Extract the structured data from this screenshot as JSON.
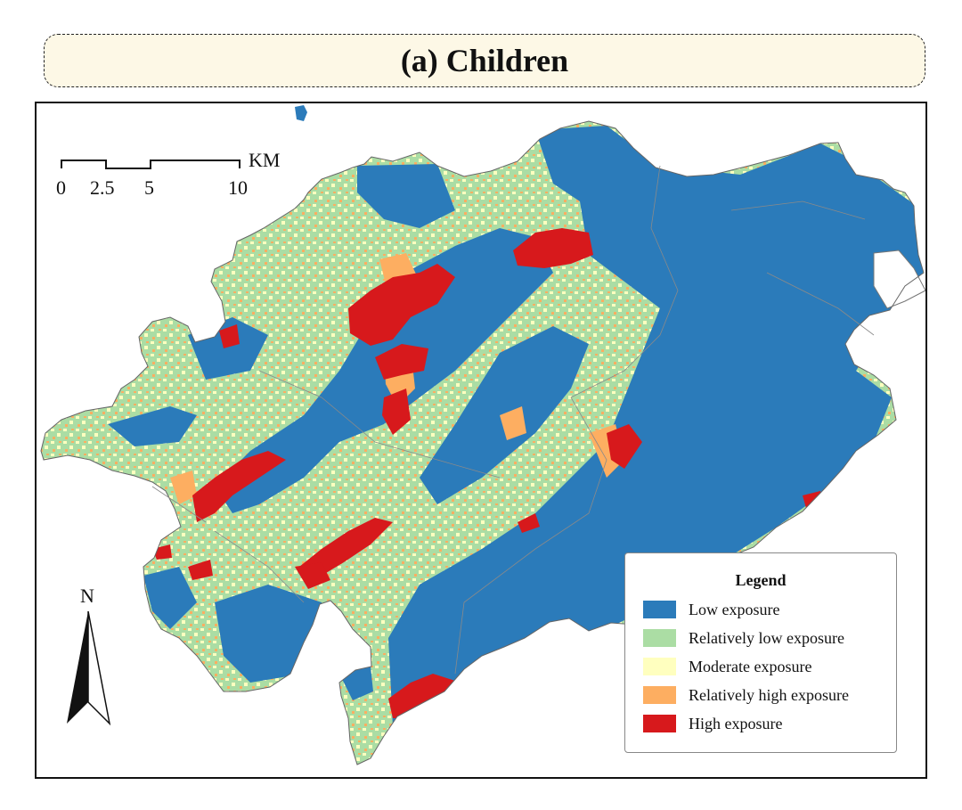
{
  "title": "(a) Children",
  "legend": {
    "title": "Legend",
    "items": [
      {
        "label": "Low exposure",
        "color": "#2b7bba"
      },
      {
        "label": "Relatively low exposure",
        "color": "#abdda4"
      },
      {
        "label": "Moderate exposure",
        "color": "#ffffbf"
      },
      {
        "label": "Relatively high exposure",
        "color": "#fdae61"
      },
      {
        "label": "High exposure",
        "color": "#d7191c"
      }
    ]
  },
  "scale_bar": {
    "unit": "KM",
    "ticks": [
      "0",
      "2.5",
      "5",
      "10"
    ]
  },
  "north_arrow": {
    "label": "N"
  }
}
